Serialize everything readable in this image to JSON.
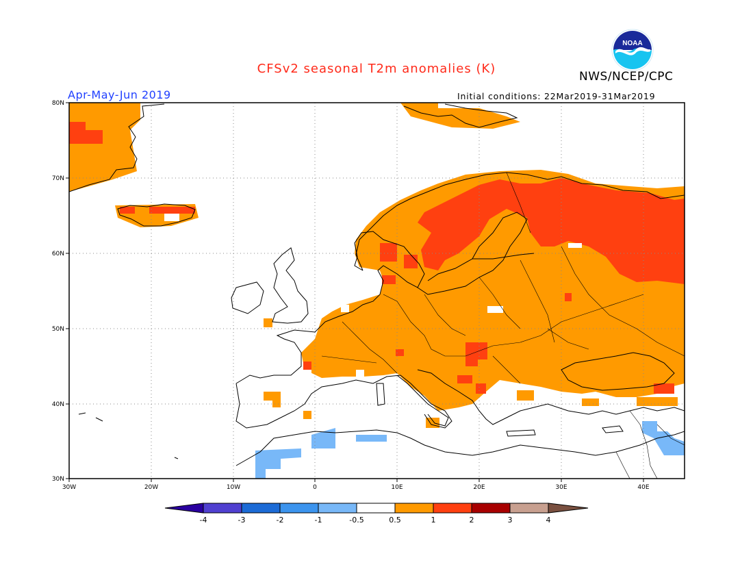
{
  "title": "CFSv2 seasonal T2m anomalies (K)",
  "agency": "NWS/NCEP/CPC",
  "logo_text": "NOAA",
  "season": "Apr-May-Jun 2019",
  "initial_conditions": "Initial conditions: 22Mar2019-31Mar2019",
  "colors": {
    "title": "#ff2a1a",
    "season": "#2040ff",
    "neg4": "#2a00a0",
    "neg3": "#5040d0",
    "neg2": "#1c6bd6",
    "neg1": "#3c94ee",
    "neg05": "#78b8f8",
    "neutral": "#ffffff",
    "pos05": "#ff9a00",
    "pos1": "#ff4010",
    "pos2": "#a80000",
    "pos3": "#c8a090",
    "pos4": "#7a5040"
  },
  "map": {
    "lat_ticks": [
      "80N",
      "70N",
      "60N",
      "50N",
      "40N",
      "30N"
    ],
    "lon_ticks": [
      "30W",
      "20W",
      "10W",
      "0",
      "10E",
      "20E",
      "30E",
      "40E"
    ],
    "lon_range": [
      -30,
      45
    ],
    "lat_range": [
      30,
      80
    ]
  },
  "colorbar": {
    "labels": [
      "-4",
      "-3",
      "-2",
      "-1",
      "-0.5",
      "0.5",
      "1",
      "2",
      "3",
      "4"
    ]
  }
}
